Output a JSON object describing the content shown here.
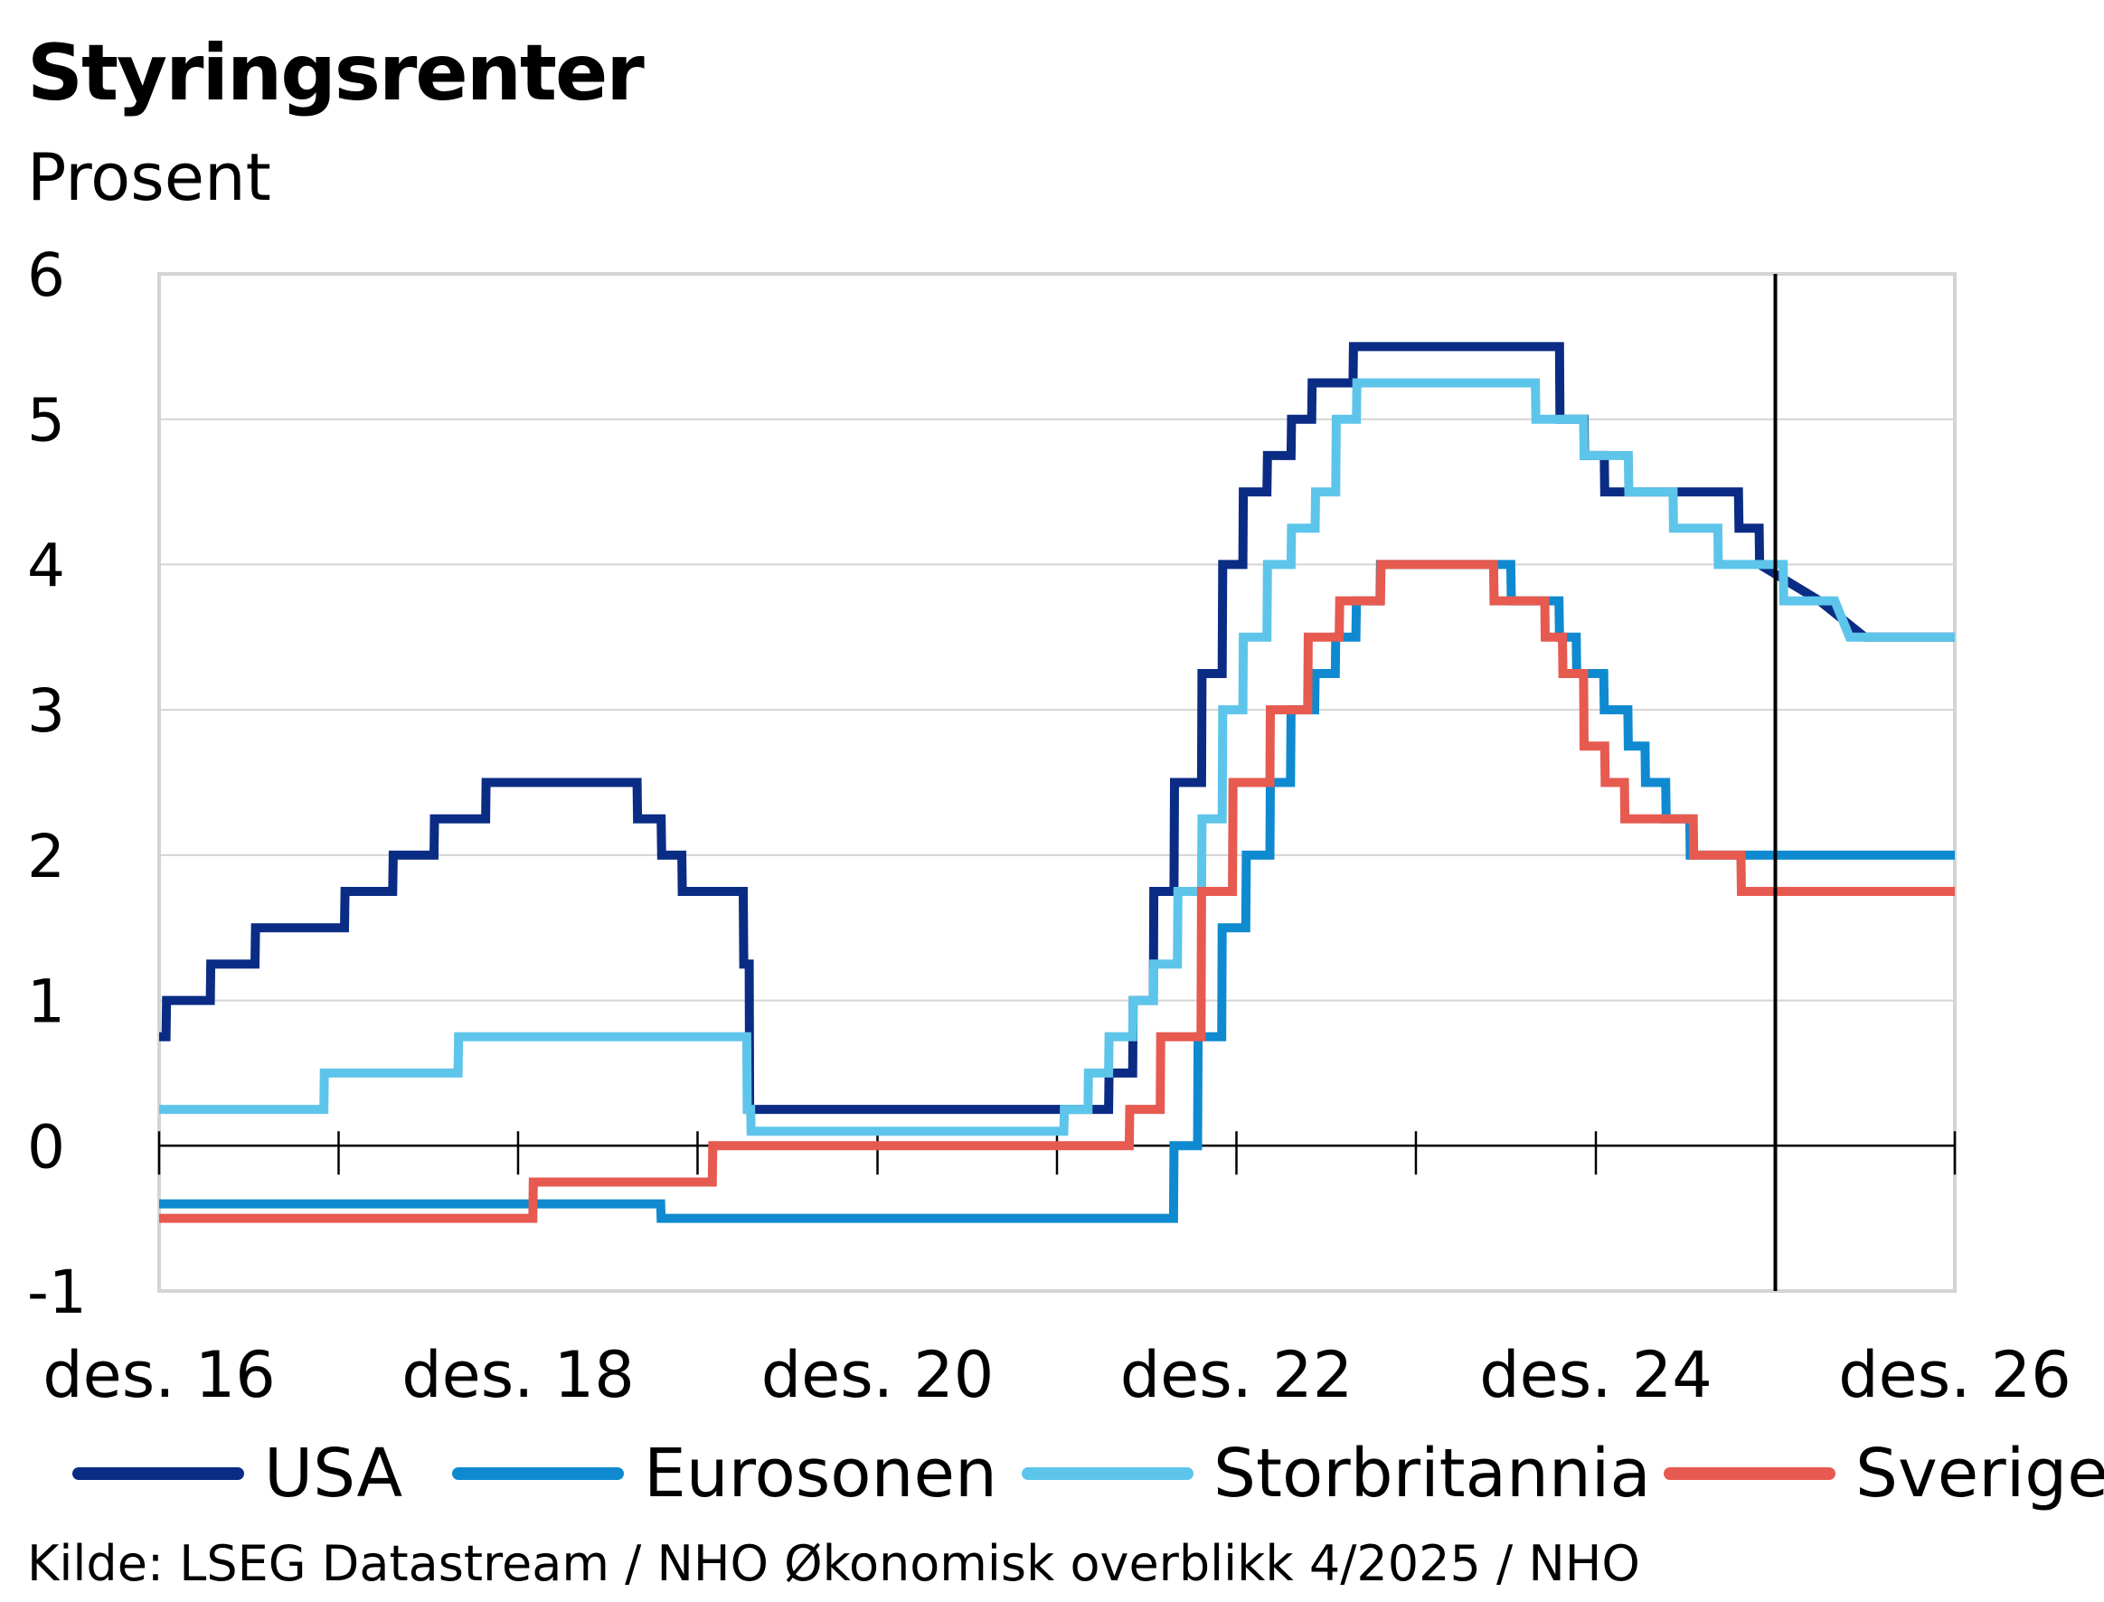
{
  "chart_data": {
    "type": "line",
    "title": "Styringsrenter",
    "subtitle": "Prosent",
    "ylim": [
      -1,
      6
    ],
    "yticks": [
      -1,
      0,
      1,
      2,
      3,
      4,
      5,
      6
    ],
    "xlim": [
      "2016-12-01",
      "2026-12-01"
    ],
    "xticks": [
      {
        "date": "2016-12-01",
        "label": "des. 16"
      },
      {
        "date": "2018-12-01",
        "label": "des. 18"
      },
      {
        "date": "2020-12-01",
        "label": "des. 20"
      },
      {
        "date": "2022-12-01",
        "label": "des. 22"
      },
      {
        "date": "2024-12-01",
        "label": "des. 24"
      },
      {
        "date": "2026-12-01",
        "label": "des. 26"
      }
    ],
    "forecast_marker_date": "2025-12-01",
    "grid": true,
    "legend_position": "bottom",
    "source": "Kilde: LSEG Datastream / NHO Økonomisk overblikk 4/2025 / NHO",
    "series": [
      {
        "name": "USA",
        "color": "#0b2c84",
        "points": [
          [
            "2016-12-01",
            0.75
          ],
          [
            "2016-12-15",
            0.75
          ],
          [
            "2016-12-16",
            1.0
          ],
          [
            "2017-03-15",
            1.0
          ],
          [
            "2017-03-16",
            1.25
          ],
          [
            "2017-06-14",
            1.25
          ],
          [
            "2017-06-15",
            1.5
          ],
          [
            "2017-12-13",
            1.5
          ],
          [
            "2017-12-14",
            1.75
          ],
          [
            "2018-03-21",
            1.75
          ],
          [
            "2018-03-22",
            2.0
          ],
          [
            "2018-06-13",
            2.0
          ],
          [
            "2018-06-14",
            2.25
          ],
          [
            "2018-09-26",
            2.25
          ],
          [
            "2018-09-27",
            2.5
          ],
          [
            "2018-12-19",
            2.5
          ],
          [
            "2018-12-20",
            2.5
          ],
          [
            "2019-07-31",
            2.5
          ],
          [
            "2019-08-01",
            2.25
          ],
          [
            "2019-09-18",
            2.25
          ],
          [
            "2019-09-19",
            2.0
          ],
          [
            "2019-10-30",
            2.0
          ],
          [
            "2019-10-31",
            1.75
          ],
          [
            "2020-03-03",
            1.75
          ],
          [
            "2020-03-04",
            1.25
          ],
          [
            "2020-03-15",
            1.25
          ],
          [
            "2020-03-16",
            0.25
          ],
          [
            "2022-03-16",
            0.25
          ],
          [
            "2022-03-17",
            0.5
          ],
          [
            "2022-05-04",
            0.5
          ],
          [
            "2022-05-05",
            1.0
          ],
          [
            "2022-06-15",
            1.0
          ],
          [
            "2022-06-16",
            1.75
          ],
          [
            "2022-07-27",
            1.75
          ],
          [
            "2022-07-28",
            2.5
          ],
          [
            "2022-09-21",
            2.5
          ],
          [
            "2022-09-22",
            3.25
          ],
          [
            "2022-11-02",
            3.25
          ],
          [
            "2022-11-03",
            4.0
          ],
          [
            "2022-12-14",
            4.0
          ],
          [
            "2022-12-15",
            4.5
          ],
          [
            "2023-02-01",
            4.5
          ],
          [
            "2023-02-02",
            4.75
          ],
          [
            "2023-03-22",
            4.75
          ],
          [
            "2023-03-23",
            5.0
          ],
          [
            "2023-05-03",
            5.0
          ],
          [
            "2023-05-04",
            5.25
          ],
          [
            "2023-07-26",
            5.25
          ],
          [
            "2023-07-27",
            5.5
          ],
          [
            "2024-09-18",
            5.5
          ],
          [
            "2024-09-19",
            5.0
          ],
          [
            "2024-11-07",
            5.0
          ],
          [
            "2024-11-08",
            4.75
          ],
          [
            "2024-12-18",
            4.75
          ],
          [
            "2024-12-19",
            4.5
          ],
          [
            "2025-09-17",
            4.5
          ],
          [
            "2025-09-18",
            4.25
          ],
          [
            "2025-10-29",
            4.25
          ],
          [
            "2025-10-30",
            4.0
          ],
          [
            "2026-03-01",
            3.75
          ],
          [
            "2026-06-01",
            3.5
          ],
          [
            "2026-12-01",
            3.5
          ]
        ]
      },
      {
        "name": "Eurosonen",
        "color": "#0f8ad0",
        "points": [
          [
            "2016-12-01",
            -0.4
          ],
          [
            "2019-09-17",
            -0.4
          ],
          [
            "2019-09-18",
            -0.5
          ],
          [
            "2022-07-26",
            -0.5
          ],
          [
            "2022-07-27",
            0.0
          ],
          [
            "2022-09-13",
            0.0
          ],
          [
            "2022-09-14",
            0.75
          ],
          [
            "2022-11-01",
            0.75
          ],
          [
            "2022-11-02",
            1.5
          ],
          [
            "2022-12-20",
            1.5
          ],
          [
            "2022-12-21",
            2.0
          ],
          [
            "2023-02-07",
            2.0
          ],
          [
            "2023-02-08",
            2.5
          ],
          [
            "2023-03-21",
            2.5
          ],
          [
            "2023-03-22",
            3.0
          ],
          [
            "2023-05-09",
            3.0
          ],
          [
            "2023-05-10",
            3.25
          ],
          [
            "2023-06-20",
            3.25
          ],
          [
            "2023-06-21",
            3.5
          ],
          [
            "2023-08-01",
            3.5
          ],
          [
            "2023-08-02",
            3.75
          ],
          [
            "2023-09-19",
            3.75
          ],
          [
            "2023-09-20",
            4.0
          ],
          [
            "2024-06-11",
            4.0
          ],
          [
            "2024-06-12",
            3.75
          ],
          [
            "2024-09-17",
            3.75
          ],
          [
            "2024-09-18",
            3.5
          ],
          [
            "2024-10-22",
            3.5
          ],
          [
            "2024-10-23",
            3.25
          ],
          [
            "2024-12-17",
            3.25
          ],
          [
            "2024-12-18",
            3.0
          ],
          [
            "2025-02-04",
            3.0
          ],
          [
            "2025-02-05",
            2.75
          ],
          [
            "2025-03-11",
            2.75
          ],
          [
            "2025-03-12",
            2.5
          ],
          [
            "2025-04-22",
            2.5
          ],
          [
            "2025-04-23",
            2.25
          ],
          [
            "2025-06-10",
            2.25
          ],
          [
            "2025-06-11",
            2.0
          ],
          [
            "2026-12-01",
            2.0
          ]
        ]
      },
      {
        "name": "Storbritannia",
        "color": "#5ec5ea",
        "points": [
          [
            "2016-12-01",
            0.25
          ],
          [
            "2017-11-01",
            0.25
          ],
          [
            "2017-11-02",
            0.5
          ],
          [
            "2018-08-01",
            0.5
          ],
          [
            "2018-08-02",
            0.75
          ],
          [
            "2020-03-10",
            0.75
          ],
          [
            "2020-03-11",
            0.25
          ],
          [
            "2020-03-18",
            0.25
          ],
          [
            "2020-03-19",
            0.1
          ],
          [
            "2021-12-15",
            0.1
          ],
          [
            "2021-12-16",
            0.25
          ],
          [
            "2022-02-02",
            0.25
          ],
          [
            "2022-02-03",
            0.5
          ],
          [
            "2022-03-16",
            0.5
          ],
          [
            "2022-03-17",
            0.75
          ],
          [
            "2022-05-04",
            0.75
          ],
          [
            "2022-05-05",
            1.0
          ],
          [
            "2022-06-15",
            1.0
          ],
          [
            "2022-06-16",
            1.25
          ],
          [
            "2022-08-03",
            1.25
          ],
          [
            "2022-08-04",
            1.75
          ],
          [
            "2022-09-21",
            1.75
          ],
          [
            "2022-09-22",
            2.25
          ],
          [
            "2022-11-02",
            2.25
          ],
          [
            "2022-11-03",
            3.0
          ],
          [
            "2022-12-14",
            3.0
          ],
          [
            "2022-12-15",
            3.5
          ],
          [
            "2023-02-01",
            3.5
          ],
          [
            "2023-02-02",
            4.0
          ],
          [
            "2023-03-22",
            4.0
          ],
          [
            "2023-03-23",
            4.25
          ],
          [
            "2023-05-10",
            4.25
          ],
          [
            "2023-05-11",
            4.5
          ],
          [
            "2023-06-21",
            4.5
          ],
          [
            "2023-06-22",
            5.0
          ],
          [
            "2023-08-02",
            5.0
          ],
          [
            "2023-08-03",
            5.25
          ],
          [
            "2024-07-31",
            5.25
          ],
          [
            "2024-08-01",
            5.0
          ],
          [
            "2024-11-06",
            5.0
          ],
          [
            "2024-11-07",
            4.75
          ],
          [
            "2025-02-05",
            4.75
          ],
          [
            "2025-02-06",
            4.5
          ],
          [
            "2025-05-07",
            4.5
          ],
          [
            "2025-05-08",
            4.25
          ],
          [
            "2025-08-06",
            4.25
          ],
          [
            "2025-08-07",
            4.0
          ],
          [
            "2025-12-17",
            4.0
          ],
          [
            "2025-12-18",
            3.75
          ],
          [
            "2026-04-01",
            3.75
          ],
          [
            "2026-05-01",
            3.5
          ],
          [
            "2026-12-01",
            3.5
          ]
        ]
      },
      {
        "name": "Sverige",
        "color": "#e65a50",
        "points": [
          [
            "2016-12-01",
            -0.5
          ],
          [
            "2018-12-31",
            -0.5
          ],
          [
            "2019-01-01",
            -0.25
          ],
          [
            "2019-12-31",
            -0.25
          ],
          [
            "2020-01-01",
            0.0
          ],
          [
            "2022-04-27",
            0.0
          ],
          [
            "2022-04-28",
            0.25
          ],
          [
            "2022-06-29",
            0.25
          ],
          [
            "2022-06-30",
            0.75
          ],
          [
            "2022-09-20",
            0.75
          ],
          [
            "2022-09-21",
            1.75
          ],
          [
            "2022-11-23",
            1.75
          ],
          [
            "2022-11-24",
            2.5
          ],
          [
            "2023-02-07",
            2.5
          ],
          [
            "2023-02-08",
            3.0
          ],
          [
            "2023-04-25",
            3.0
          ],
          [
            "2023-04-26",
            3.5
          ],
          [
            "2023-06-28",
            3.5
          ],
          [
            "2023-06-29",
            3.75
          ],
          [
            "2023-09-20",
            3.75
          ],
          [
            "2023-09-21",
            4.0
          ],
          [
            "2024-05-07",
            4.0
          ],
          [
            "2024-05-08",
            3.75
          ],
          [
            "2024-08-19",
            3.75
          ],
          [
            "2024-08-20",
            3.5
          ],
          [
            "2024-09-24",
            3.5
          ],
          [
            "2024-09-25",
            3.25
          ],
          [
            "2024-11-06",
            3.25
          ],
          [
            "2024-11-07",
            2.75
          ],
          [
            "2024-12-19",
            2.75
          ],
          [
            "2024-12-20",
            2.5
          ],
          [
            "2025-01-28",
            2.5
          ],
          [
            "2025-01-29",
            2.25
          ],
          [
            "2025-06-17",
            2.25
          ],
          [
            "2025-06-18",
            2.0
          ],
          [
            "2025-09-22",
            2.0
          ],
          [
            "2025-09-23",
            1.75
          ],
          [
            "2026-12-01",
            1.75
          ]
        ]
      }
    ]
  }
}
